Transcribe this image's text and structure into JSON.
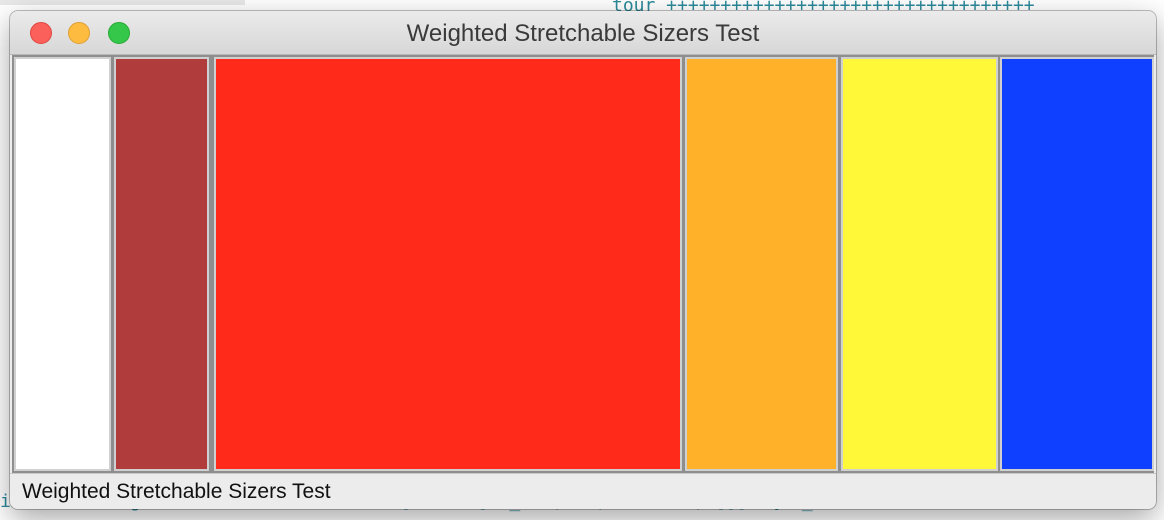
{
  "window": {
    "title": "Weighted Stretchable Sizers Test",
    "status_text": "Weighted Stretchable Sizers Test"
  },
  "panels": [
    {
      "name": "white",
      "color": "#ffffff"
    },
    {
      "name": "brown",
      "color": "#b13c3c"
    },
    {
      "name": "red",
      "color": "#ff2a1a"
    },
    {
      "name": "orange",
      "color": "#ffb12a"
    },
    {
      "name": "yellow",
      "color": "#fff838"
    },
    {
      "name": "blue",
      "color": "#1040ff"
    }
  ],
  "background_code": {
    "top_right": "tour ++++++++++++++++++++++++++++++++++",
    "bottom_line": "ixi:size:WeightedStretchableWindow:48] tcs  [wx_ref, 33, wxFrame, []]  {wx_re"
  }
}
